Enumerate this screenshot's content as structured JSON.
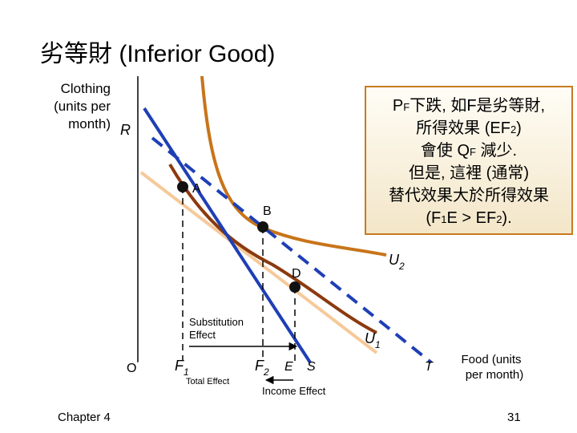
{
  "title": "劣等財 (Inferior Good)",
  "y_axis_label": [
    "Clothing",
    "(units per",
    "month)"
  ],
  "x_axis_label": [
    "Food (units",
    "per month)"
  ],
  "points": {
    "R": "R",
    "A": "A",
    "B": "B",
    "D": "D",
    "O": "O",
    "E": "E",
    "S": "S",
    "T": "T"
  },
  "f1": {
    "main": "F",
    "sub": "1"
  },
  "f2": {
    "main": "F",
    "sub": "2"
  },
  "u1": {
    "main": "U",
    "sub": "1"
  },
  "u2": {
    "main": "U",
    "sub": "2"
  },
  "substitution_effect": [
    "Substitution",
    "Effect"
  ],
  "total_effect": "Total Effect",
  "income_effect": "Income Effect",
  "textbox": [
    [
      {
        "text": "P"
      },
      {
        "text": "F",
        "small": true
      },
      {
        "text": "下跌, 如F是劣等財,"
      }
    ],
    [
      {
        "text": "所得效果 (EF"
      },
      {
        "text": "2",
        "small": true
      },
      {
        "text": ")"
      }
    ],
    [
      {
        "text": "會使 Q"
      },
      {
        "text": "F",
        "small": true
      },
      {
        "text": " 減少."
      }
    ],
    [
      {
        "text": "但是, 這裡 (通常)"
      }
    ],
    [
      {
        "text": "替代效果大於所得效果"
      }
    ],
    [
      {
        "text": "(F"
      },
      {
        "text": "1",
        "small": true
      },
      {
        "text": "E > EF"
      },
      {
        "text": "2",
        "small": true
      },
      {
        "text": ")."
      }
    ]
  ],
  "footer": {
    "chapter": "Chapter 4",
    "page": "31"
  }
}
